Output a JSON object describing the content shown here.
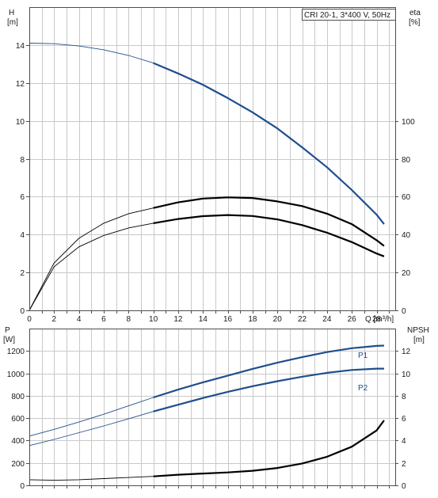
{
  "chart_data": [
    {
      "type": "line",
      "title": "CRI 20-1, 3*400 V, 50Hz",
      "xlabel": "Q [m³/h]",
      "xlim": [
        0,
        29.5
      ],
      "xticks": [
        0,
        2,
        4,
        6,
        8,
        10,
        12,
        14,
        16,
        18,
        20,
        22,
        24,
        26,
        28
      ],
      "left_axis": {
        "label_line1": "H",
        "label_line2": "[m]",
        "ylim": [
          0,
          16
        ],
        "ticks": [
          0,
          2,
          4,
          6,
          8,
          10,
          12,
          14
        ]
      },
      "right_axis": {
        "label_line1": "eta",
        "label_line2": "[%]",
        "ylim": [
          0,
          160
        ],
        "ticks": [
          0,
          20,
          40,
          60,
          80,
          100
        ]
      },
      "grid": true,
      "series": [
        {
          "axis": "left",
          "color": "#1f4e8c",
          "x": [
            0,
            2,
            4,
            6,
            8,
            10,
            12,
            14,
            16,
            18,
            20,
            22,
            24,
            26,
            28,
            28.6
          ],
          "y": [
            14.1,
            14.07,
            13.95,
            13.75,
            13.45,
            13.05,
            12.5,
            11.9,
            11.2,
            10.45,
            9.6,
            8.6,
            7.55,
            6.35,
            5.05,
            4.55
          ]
        },
        {
          "axis": "right",
          "color": "#000000",
          "x": [
            0,
            2,
            4,
            6,
            8,
            10,
            12,
            14,
            16,
            18,
            20,
            22,
            24,
            26,
            28,
            28.6
          ],
          "y": [
            0,
            25,
            38,
            46,
            51,
            54,
            57,
            59,
            59.6,
            59.3,
            57.5,
            55,
            51,
            45.5,
            37,
            34
          ]
        },
        {
          "axis": "left",
          "color": "#000000",
          "x": [
            0,
            2,
            4,
            6,
            8,
            10,
            12,
            14,
            16,
            18,
            20,
            22,
            24,
            26,
            28,
            28.6
          ],
          "y": [
            0,
            2.3,
            3.35,
            3.95,
            4.35,
            4.6,
            4.82,
            4.97,
            5.03,
            4.98,
            4.8,
            4.5,
            4.1,
            3.6,
            3.0,
            2.85
          ]
        }
      ]
    },
    {
      "type": "line",
      "xlim": [
        0,
        29.5
      ],
      "left_axis": {
        "label_line1": "P",
        "label_line2": "[W]",
        "ylim": [
          0,
          1400
        ],
        "ticks": [
          0,
          200,
          400,
          600,
          800,
          1000,
          1200
        ]
      },
      "right_axis": {
        "label_line1": "NPSH",
        "label_line2": "[m]",
        "ylim": [
          0,
          14
        ],
        "ticks": [
          0,
          2,
          4,
          6,
          8,
          10,
          12
        ]
      },
      "grid": true,
      "series": [
        {
          "name": "P1",
          "axis": "left",
          "color": "#1f4e8c",
          "x": [
            0,
            2,
            4,
            6,
            8,
            10,
            12,
            14,
            16,
            18,
            20,
            22,
            24,
            26,
            28,
            28.6
          ],
          "y": [
            440,
            500,
            565,
            635,
            710,
            785,
            855,
            920,
            980,
            1040,
            1095,
            1145,
            1190,
            1225,
            1245,
            1248
          ]
        },
        {
          "name": "P2",
          "axis": "left",
          "color": "#1f4e8c",
          "x": [
            0,
            2,
            4,
            6,
            8,
            10,
            12,
            14,
            16,
            18,
            20,
            22,
            24,
            26,
            28,
            28.6
          ],
          "y": [
            355,
            410,
            470,
            530,
            595,
            660,
            720,
            780,
            835,
            885,
            930,
            970,
            1005,
            1030,
            1042,
            1042
          ]
        },
        {
          "axis": "right",
          "color": "#000000",
          "x": [
            0,
            2,
            4,
            6,
            8,
            10,
            12,
            14,
            16,
            18,
            20,
            22,
            24,
            26,
            28,
            28.6
          ],
          "y": [
            0.5,
            0.45,
            0.5,
            0.6,
            0.7,
            0.8,
            0.95,
            1.05,
            1.15,
            1.3,
            1.55,
            1.95,
            2.55,
            3.45,
            4.9,
            5.8
          ]
        }
      ]
    }
  ]
}
